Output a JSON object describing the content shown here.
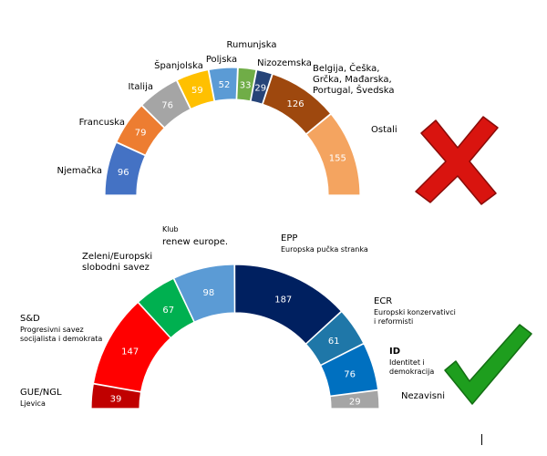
{
  "chart_data": [
    {
      "type": "pie",
      "variant": "semicircle",
      "categories": [
        "Njemačka",
        "Francuska",
        "Italija",
        "Španjolska",
        "Poljska",
        "Rumunjska",
        "Nizozemska",
        "Belgija, Češka, Grčka, Mađarska, Portugal, Švedska",
        "Ostali"
      ],
      "values": [
        96,
        79,
        76,
        59,
        52,
        33,
        29,
        126,
        155
      ],
      "colors": [
        "#4472c4",
        "#ed7d31",
        "#a5a5a5",
        "#ffc000",
        "#5b9bd5",
        "#70ad47",
        "#264478",
        "#9e480e",
        "#f4a460"
      ],
      "verdict": "cross",
      "verdict_color": "#d9140f"
    },
    {
      "type": "pie",
      "variant": "semicircle",
      "categories": [
        "GUE/NGL",
        "S&D",
        "Zeleni/Europski slobodni savez",
        "renew europe.",
        "EPP",
        "ECR",
        "ID",
        "Nezavisni"
      ],
      "values": [
        39,
        147,
        67,
        98,
        187,
        61,
        76,
        29
      ],
      "colors": [
        "#c00000",
        "#ff0000",
        "#00b050",
        "#5b9bd5",
        "#002060",
        "#1f77a8",
        "#0070c0",
        "#a5a5a5"
      ],
      "labels": [
        {
          "name": "GUE/NGL",
          "sub": "Ljevica"
        },
        {
          "name": "S&D",
          "sub": "Progresivni savez socijalista i demokrata"
        },
        {
          "name": "Zeleni/Europski slobodni savez",
          "sub": ""
        },
        {
          "name": "renew europe.",
          "sub": "Klub"
        },
        {
          "name": "EPP",
          "sub": "Europska pučka stranka"
        },
        {
          "name": "ECR",
          "sub": "Europski konzervativci i reformisti"
        },
        {
          "name": "ID",
          "sub": "Identitet i demokracija"
        },
        {
          "name": "Nezavisni",
          "sub": ""
        }
      ],
      "verdict": "check",
      "verdict_color": "#1e9e1e"
    }
  ]
}
